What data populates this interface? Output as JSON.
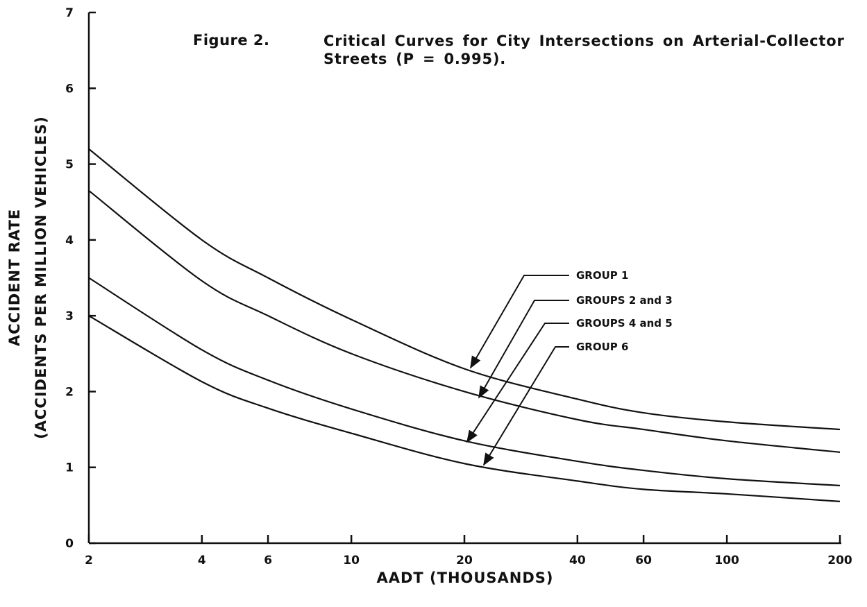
{
  "chart_data": {
    "type": "line",
    "figure_label": "Figure 2.",
    "title": "Critical Curves for City Intersections on Arterial-Collector Streets (P = 0.995).",
    "xlabel": "AADT (THOUSANDS)",
    "ylabel": "ACCIDENT RATE",
    "ylabel_sub": "(ACCIDENTS PER MILLION VEHICLES)",
    "x_scale": "log",
    "xlim": [
      2,
      200
    ],
    "xticks": [
      2,
      4,
      6,
      10,
      20,
      40,
      60,
      100,
      200
    ],
    "ylim": [
      0,
      7
    ],
    "yticks": [
      0,
      1,
      2,
      3,
      4,
      5,
      6,
      7
    ],
    "grid": false,
    "x": [
      2,
      4,
      6,
      10,
      20,
      40,
      60,
      100,
      200
    ],
    "series": [
      {
        "name": "GROUP 1",
        "color": "#111111",
        "values": [
          5.2,
          4.0,
          3.5,
          2.95,
          2.3,
          1.9,
          1.72,
          1.6,
          1.5
        ]
      },
      {
        "name": "GROUPS 2 and 3",
        "color": "#111111",
        "values": [
          4.65,
          3.46,
          3.0,
          2.5,
          2.0,
          1.63,
          1.5,
          1.35,
          1.2
        ]
      },
      {
        "name": "GROUPS 4 and 5",
        "color": "#111111",
        "values": [
          3.5,
          2.55,
          2.15,
          1.77,
          1.35,
          1.08,
          0.96,
          0.85,
          0.76
        ]
      },
      {
        "name": "GROUP 6",
        "color": "#111111",
        "values": [
          3.0,
          2.13,
          1.78,
          1.45,
          1.05,
          0.82,
          0.71,
          0.65,
          0.55
        ]
      }
    ]
  }
}
